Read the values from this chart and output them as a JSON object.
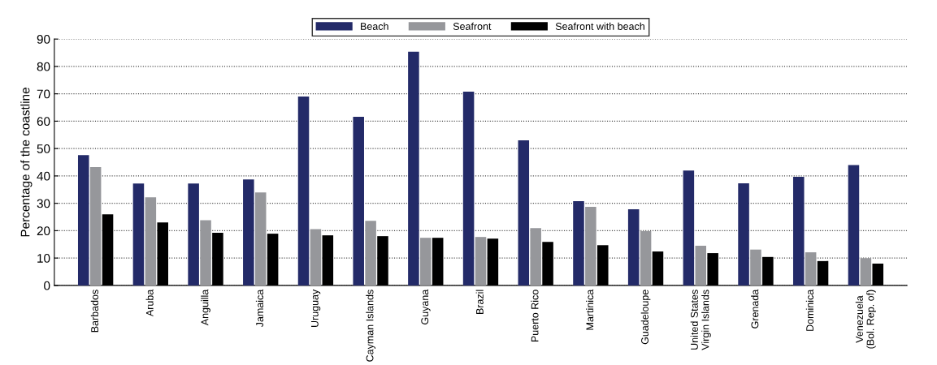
{
  "chart_data": {
    "type": "bar",
    "ylabel": "Percentage of the coastline",
    "categories": [
      "Barbados",
      "Aruba",
      "Anguilla",
      "Jamaica",
      "Uruguay",
      "Cayman Islands",
      "Guyana",
      "Brazil",
      "Puerto Rico",
      "Martinica",
      "Guadeloupe",
      "United States\nVirgin Islands",
      "Grenada",
      "Dominica",
      "Venezuela\n(Bol. Rep. of)"
    ],
    "series": [
      {
        "name": "Beach",
        "color": "#232a68",
        "values": [
          47.6,
          37.2,
          37.2,
          38.7,
          69,
          61.6,
          85.4,
          70.8,
          53,
          30.8,
          27.8,
          42,
          37.3,
          39.7,
          44
        ]
      },
      {
        "name": "Seafront",
        "color": "#96979b",
        "values": [
          43.2,
          32.2,
          23.8,
          34,
          20.6,
          23.6,
          17.4,
          17.7,
          20.9,
          28.7,
          19.8,
          14.5,
          13.1,
          12.1,
          10
        ]
      },
      {
        "name": "Seafront with beach",
        "color": "#000000",
        "values": [
          26,
          23,
          19.2,
          18.9,
          18.3,
          18,
          17.4,
          17.1,
          15.9,
          14.7,
          12.4,
          11.8,
          10.4,
          8.9,
          8
        ]
      }
    ],
    "ylim": [
      0,
      90
    ],
    "yticks": [
      0,
      10,
      20,
      30,
      40,
      50,
      60,
      70,
      80,
      90
    ],
    "grid": "y",
    "legend": "top"
  }
}
